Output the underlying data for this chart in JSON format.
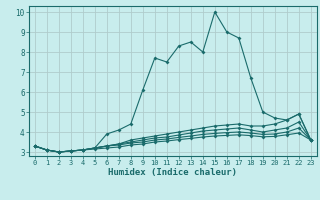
{
  "xlabel": "Humidex (Indice chaleur)",
  "ylabel": "",
  "xlim": [
    -0.5,
    23.5
  ],
  "ylim": [
    2.8,
    10.3
  ],
  "yticks": [
    3,
    4,
    5,
    6,
    7,
    8,
    9,
    10
  ],
  "xticks": [
    0,
    1,
    2,
    3,
    4,
    5,
    6,
    7,
    8,
    9,
    10,
    11,
    12,
    13,
    14,
    15,
    16,
    17,
    18,
    19,
    20,
    21,
    22,
    23
  ],
  "background_color": "#c8eded",
  "grid_color": "#b0cccc",
  "line_color": "#1a6b6b",
  "lines": [
    [
      3.3,
      3.1,
      3.0,
      3.05,
      3.1,
      3.2,
      3.9,
      4.1,
      4.4,
      6.1,
      7.7,
      7.5,
      8.3,
      8.5,
      8.0,
      10.0,
      9.0,
      8.7,
      6.7,
      5.0,
      4.7,
      4.6,
      4.9,
      3.6
    ],
    [
      3.3,
      3.1,
      3.0,
      3.05,
      3.1,
      3.2,
      3.3,
      3.4,
      3.6,
      3.7,
      3.8,
      3.9,
      4.0,
      4.1,
      4.2,
      4.3,
      4.35,
      4.4,
      4.3,
      4.3,
      4.4,
      4.6,
      4.9,
      3.6
    ],
    [
      3.3,
      3.1,
      3.0,
      3.05,
      3.1,
      3.2,
      3.3,
      3.4,
      3.5,
      3.6,
      3.7,
      3.75,
      3.85,
      3.95,
      4.05,
      4.1,
      4.15,
      4.2,
      4.1,
      4.0,
      4.1,
      4.2,
      4.5,
      3.6
    ],
    [
      3.3,
      3.1,
      3.0,
      3.05,
      3.1,
      3.2,
      3.3,
      3.35,
      3.45,
      3.5,
      3.6,
      3.65,
      3.73,
      3.8,
      3.88,
      3.93,
      3.97,
      4.0,
      3.95,
      3.88,
      3.9,
      4.0,
      4.2,
      3.6
    ],
    [
      3.3,
      3.1,
      3.0,
      3.05,
      3.1,
      3.15,
      3.2,
      3.25,
      3.35,
      3.4,
      3.5,
      3.55,
      3.62,
      3.68,
      3.75,
      3.8,
      3.83,
      3.86,
      3.82,
      3.76,
      3.78,
      3.86,
      3.95,
      3.6
    ]
  ]
}
